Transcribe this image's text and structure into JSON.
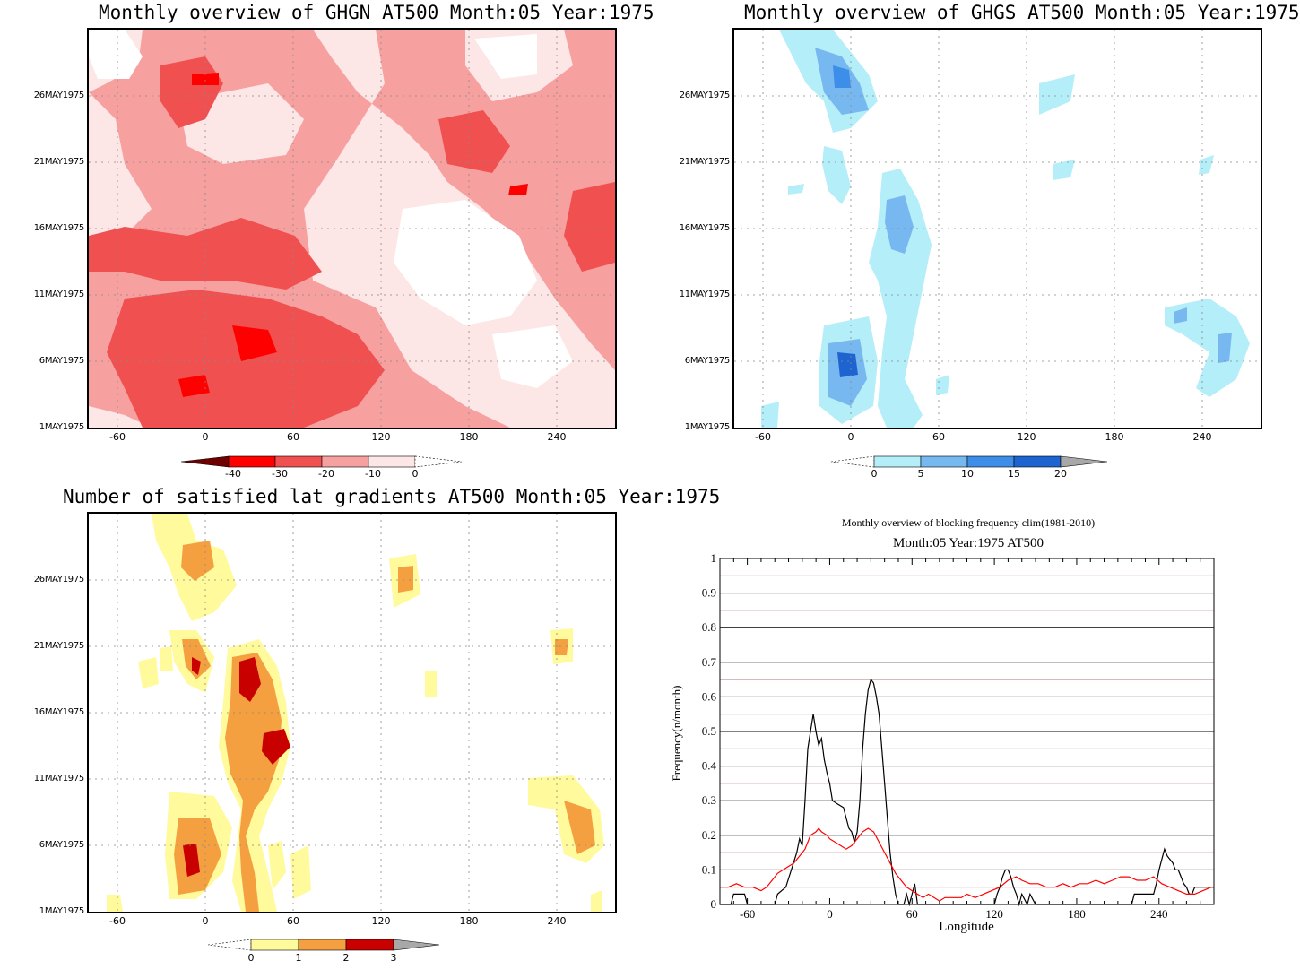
{
  "panels": {
    "ghgn": {
      "title": "Monthly overview of GHGN AT500 Month:05 Year:1975",
      "colorbar": {
        "labels": [
          "-40",
          "-30",
          "-20",
          "-10",
          "0"
        ],
        "colors": [
          "#6e0000",
          "#ff0000",
          "#f05050",
          "#f7a0a0",
          "#fde6e6"
        ]
      }
    },
    "ghgs": {
      "title": "Monthly overview of GHGS AT500 Month:05 Year:1975",
      "colorbar": {
        "labels": [
          "0",
          "5",
          "10",
          "15",
          "20"
        ],
        "colors": [
          "#b4eef8",
          "#78b8f0",
          "#3c8ee8",
          "#1e64d0",
          "#a8a8a8"
        ]
      }
    },
    "nlat": {
      "title": "Number of satisfied lat gradients AT500 Month:05 Year:1975",
      "colorbar": {
        "labels": [
          "0",
          "1",
          "2",
          "3"
        ],
        "colors": [
          "#fffa9c",
          "#f5a040",
          "#c80000",
          "#a8a8a8"
        ]
      }
    },
    "freq": {
      "title": "Monthly overview of blocking frequency clim(1981-2010)",
      "subtitle": "Month:05 Year:1975  AT500",
      "xlabel": "Longitude",
      "ylabel": "Frequency(n/month)"
    }
  },
  "axes": {
    "date_ticks": [
      "1MAY1975",
      "6MAY1975",
      "11MAY1975",
      "16MAY1975",
      "21MAY1975",
      "26MAY1975"
    ],
    "lon_ticks": [
      "-60",
      "0",
      "60",
      "120",
      "180",
      "240"
    ],
    "freq_yticks": [
      "0",
      "0.1",
      "0.2",
      "0.3",
      "0.4",
      "0.5",
      "0.6",
      "0.7",
      "0.8",
      "0.9",
      "1"
    ],
    "freq_xticks": [
      "-60",
      "0",
      "60",
      "120",
      "180",
      "240"
    ]
  },
  "chart_data": [
    {
      "type": "heatmap",
      "title": "Monthly overview of GHGN AT500 Month:05 Year:1975",
      "xlim": [
        -80,
        280
      ],
      "x_ticks": [
        -60,
        0,
        60,
        120,
        180,
        240
      ],
      "y_ticks": [
        "1MAY1975",
        "6MAY1975",
        "11MAY1975",
        "16MAY1975",
        "21MAY1975",
        "26MAY1975"
      ],
      "legend_levels": [
        -40,
        -30,
        -20,
        -10,
        0
      ],
      "colors": [
        "#6e0000",
        "#ff0000",
        "#f05050",
        "#f7a0a0",
        "#fde6e6"
      ]
    },
    {
      "type": "heatmap",
      "title": "Monthly overview of GHGS AT500 Month:05 Year:1975",
      "xlim": [
        -80,
        280
      ],
      "x_ticks": [
        -60,
        0,
        60,
        120,
        180,
        240
      ],
      "y_ticks": [
        "1MAY1975",
        "6MAY1975",
        "11MAY1975",
        "16MAY1975",
        "21MAY1975",
        "26MAY1975"
      ],
      "legend_levels": [
        0,
        5,
        10,
        15,
        20
      ],
      "colors": [
        "#b4eef8",
        "#78b8f0",
        "#3c8ee8",
        "#1e64d0",
        "#a8a8a8"
      ]
    },
    {
      "type": "heatmap",
      "title": "Number of satisfied lat gradients AT500 Month:05 Year:1975",
      "xlim": [
        -80,
        280
      ],
      "x_ticks": [
        -60,
        0,
        60,
        120,
        180,
        240
      ],
      "y_ticks": [
        "1MAY1975",
        "6MAY1975",
        "11MAY1975",
        "16MAY1975",
        "21MAY1975",
        "26MAY1975"
      ],
      "legend_levels": [
        0,
        1,
        2,
        3
      ],
      "colors": [
        "#fffa9c",
        "#f5a040",
        "#c80000",
        "#a8a8a8"
      ]
    },
    {
      "type": "line",
      "title": "Monthly overview of blocking frequency clim(1981-2010)",
      "subtitle": "Month:05 Year:1975  AT500",
      "xlabel": "Longitude",
      "ylabel": "Frequency(n/month)",
      "xlim": [
        -80,
        280
      ],
      "ylim": [
        0,
        1
      ],
      "grid": true,
      "series": [
        {
          "color": "#000000",
          "points": [
            [
              -80,
              0
            ],
            [
              -72,
              0
            ],
            [
              -70,
              0.03
            ],
            [
              -62,
              0.03
            ],
            [
              -60,
              0
            ],
            [
              -40,
              0
            ],
            [
              -38,
              0.03
            ],
            [
              -32,
              0.05
            ],
            [
              -28,
              0.1
            ],
            [
              -24,
              0.15
            ],
            [
              -22,
              0.19
            ],
            [
              -20,
              0.17
            ],
            [
              -18,
              0.3
            ],
            [
              -16,
              0.45
            ],
            [
              -14,
              0.5
            ],
            [
              -12,
              0.55
            ],
            [
              -10,
              0.5
            ],
            [
              -8,
              0.46
            ],
            [
              -6,
              0.48
            ],
            [
              -4,
              0.42
            ],
            [
              -2,
              0.38
            ],
            [
              0,
              0.35
            ],
            [
              2,
              0.3
            ],
            [
              6,
              0.29
            ],
            [
              10,
              0.28
            ],
            [
              12,
              0.25
            ],
            [
              14,
              0.22
            ],
            [
              16,
              0.21
            ],
            [
              18,
              0.18
            ],
            [
              20,
              0.21
            ],
            [
              22,
              0.3
            ],
            [
              24,
              0.45
            ],
            [
              26,
              0.55
            ],
            [
              28,
              0.62
            ],
            [
              30,
              0.65
            ],
            [
              32,
              0.64
            ],
            [
              34,
              0.6
            ],
            [
              36,
              0.55
            ],
            [
              38,
              0.45
            ],
            [
              40,
              0.35
            ],
            [
              42,
              0.25
            ],
            [
              44,
              0.15
            ],
            [
              46,
              0.08
            ],
            [
              48,
              0.03
            ],
            [
              50,
              0
            ],
            [
              54,
              0
            ],
            [
              56,
              0.03
            ],
            [
              58,
              0
            ],
            [
              60,
              0.03
            ],
            [
              62,
              0.06
            ],
            [
              64,
              0
            ],
            [
              120,
              0
            ],
            [
              122,
              0.03
            ],
            [
              124,
              0.05
            ],
            [
              126,
              0.08
            ],
            [
              128,
              0.1
            ],
            [
              130,
              0.1
            ],
            [
              132,
              0.08
            ],
            [
              134,
              0.05
            ],
            [
              136,
              0.03
            ],
            [
              138,
              0
            ],
            [
              140,
              0.03
            ],
            [
              144,
              0
            ],
            [
              146,
              0.03
            ],
            [
              150,
              0
            ],
            [
              220,
              0
            ],
            [
              222,
              0.03
            ],
            [
              236,
              0.03
            ],
            [
              238,
              0.06
            ],
            [
              240,
              0.1
            ],
            [
              242,
              0.13
            ],
            [
              244,
              0.16
            ],
            [
              246,
              0.14
            ],
            [
              248,
              0.13
            ],
            [
              250,
              0.12
            ],
            [
              252,
              0.1
            ],
            [
              254,
              0.1
            ],
            [
              256,
              0.08
            ],
            [
              258,
              0.06
            ],
            [
              260,
              0.05
            ],
            [
              262,
              0.03
            ],
            [
              264,
              0.03
            ],
            [
              266,
              0.05
            ],
            [
              268,
              0.05
            ],
            [
              280,
              0.05
            ]
          ]
        },
        {
          "color": "#ff0000",
          "points": [
            [
              -80,
              0.05
            ],
            [
              -74,
              0.05
            ],
            [
              -68,
              0.06
            ],
            [
              -62,
              0.05
            ],
            [
              -56,
              0.05
            ],
            [
              -50,
              0.04
            ],
            [
              -46,
              0.05
            ],
            [
              -42,
              0.07
            ],
            [
              -38,
              0.09
            ],
            [
              -34,
              0.1
            ],
            [
              -30,
              0.11
            ],
            [
              -26,
              0.12
            ],
            [
              -22,
              0.14
            ],
            [
              -18,
              0.16
            ],
            [
              -14,
              0.2
            ],
            [
              -10,
              0.21
            ],
            [
              -8,
              0.22
            ],
            [
              -6,
              0.21
            ],
            [
              -2,
              0.2
            ],
            [
              0,
              0.19
            ],
            [
              4,
              0.18
            ],
            [
              8,
              0.17
            ],
            [
              12,
              0.16
            ],
            [
              16,
              0.17
            ],
            [
              20,
              0.19
            ],
            [
              24,
              0.21
            ],
            [
              28,
              0.22
            ],
            [
              32,
              0.21
            ],
            [
              36,
              0.18
            ],
            [
              40,
              0.15
            ],
            [
              44,
              0.12
            ],
            [
              48,
              0.09
            ],
            [
              52,
              0.07
            ],
            [
              56,
              0.05
            ],
            [
              60,
              0.04
            ],
            [
              64,
              0.03
            ],
            [
              68,
              0.02
            ],
            [
              72,
              0.03
            ],
            [
              76,
              0.02
            ],
            [
              80,
              0.01
            ],
            [
              84,
              0.02
            ],
            [
              90,
              0.02
            ],
            [
              96,
              0.02
            ],
            [
              100,
              0.03
            ],
            [
              106,
              0.02
            ],
            [
              112,
              0.03
            ],
            [
              118,
              0.04
            ],
            [
              124,
              0.05
            ],
            [
              130,
              0.07
            ],
            [
              136,
              0.08
            ],
            [
              140,
              0.07
            ],
            [
              146,
              0.06
            ],
            [
              152,
              0.06
            ],
            [
              158,
              0.05
            ],
            [
              164,
              0.05
            ],
            [
              170,
              0.06
            ],
            [
              176,
              0.05
            ],
            [
              182,
              0.06
            ],
            [
              188,
              0.06
            ],
            [
              194,
              0.07
            ],
            [
              200,
              0.06
            ],
            [
              206,
              0.07
            ],
            [
              212,
              0.08
            ],
            [
              218,
              0.08
            ],
            [
              224,
              0.07
            ],
            [
              230,
              0.07
            ],
            [
              236,
              0.08
            ],
            [
              242,
              0.06
            ],
            [
              248,
              0.05
            ],
            [
              254,
              0.04
            ],
            [
              260,
              0.03
            ],
            [
              266,
              0.03
            ],
            [
              272,
              0.04
            ],
            [
              278,
              0.05
            ],
            [
              280,
              0.05
            ]
          ]
        }
      ]
    }
  ]
}
